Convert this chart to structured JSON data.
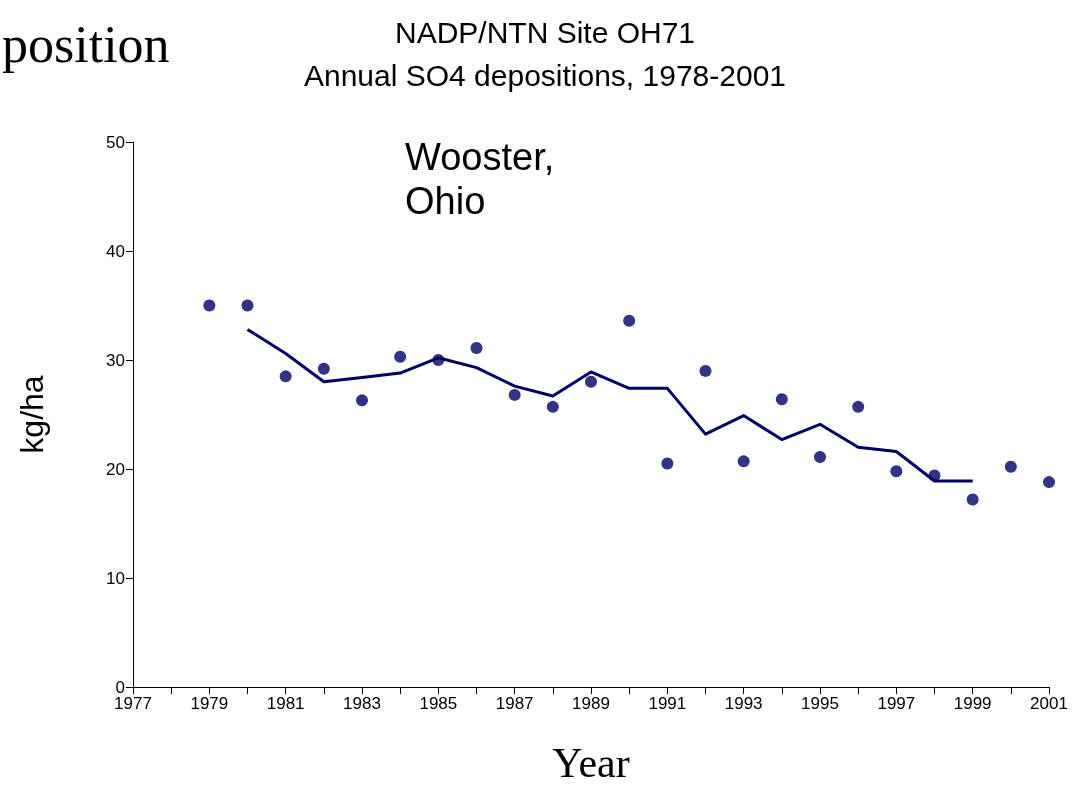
{
  "chart_data": {
    "type": "scatter",
    "title": "NADP/NTN Site OH71",
    "subtitle": "Annual SO4 depositions, 1978-2001",
    "xlabel": "Year",
    "ylabel": "kg/ha",
    "annotations": [
      "position",
      "Wooster,\nOhio"
    ],
    "x": [
      1979,
      1980,
      1981,
      1982,
      1983,
      1984,
      1985,
      1986,
      1987,
      1988,
      1989,
      1990,
      1991,
      1992,
      1993,
      1994,
      1995,
      1996,
      1997,
      1998,
      1999,
      2000,
      2001
    ],
    "series": [
      {
        "color": "#000066",
        "marker": "circle",
        "values": [
          35.0,
          35.0,
          28.5,
          29.2,
          26.3,
          30.3,
          30.0,
          31.1,
          26.8,
          25.7,
          28.0,
          33.6,
          20.5,
          29.0,
          20.7,
          26.4,
          21.1,
          25.7,
          19.8,
          19.4,
          17.2,
          20.2,
          18.8
        ]
      },
      {
        "type": "line",
        "color": "#000066",
        "marker": "none",
        "line_style": "solid",
        "x": [
          1980,
          1981,
          1982,
          1983,
          1984,
          1985,
          1986,
          1987,
          1988,
          1989,
          1990,
          1991,
          1992,
          1993,
          1994,
          1995,
          1996,
          1997,
          1998,
          1999
        ],
        "values": [
          32.8,
          30.6,
          28.0,
          28.4,
          28.8,
          30.2,
          29.3,
          27.6,
          26.7,
          28.9,
          27.4,
          27.4,
          23.2,
          24.9,
          22.7,
          24.1,
          22.0,
          21.6,
          18.9,
          18.9
        ]
      }
    ],
    "xlim": [
      1977,
      2001
    ],
    "xticks": [
      1977,
      {
        "value": 1978,
        "label": null
      },
      1979,
      {
        "value": 1980,
        "label": null
      },
      1981,
      {
        "value": 1982,
        "label": null
      },
      1983,
      {
        "value": 1984,
        "label": null
      },
      1985,
      {
        "value": 1986,
        "label": null
      },
      1987,
      {
        "value": 1988,
        "label": null
      },
      1989,
      {
        "value": 1990,
        "label": null
      },
      1991,
      {
        "value": 1992,
        "label": null
      },
      1993,
      {
        "value": 1994,
        "label": null
      },
      1995,
      {
        "value": 1996,
        "label": null
      },
      1997,
      {
        "value": 1998,
        "label": null
      },
      1999,
      {
        "value": 2000,
        "label": null
      },
      2001
    ],
    "ylim": [
      0,
      50
    ],
    "yticks": [
      0,
      10,
      20,
      30,
      40,
      50
    ],
    "grid": false
  }
}
